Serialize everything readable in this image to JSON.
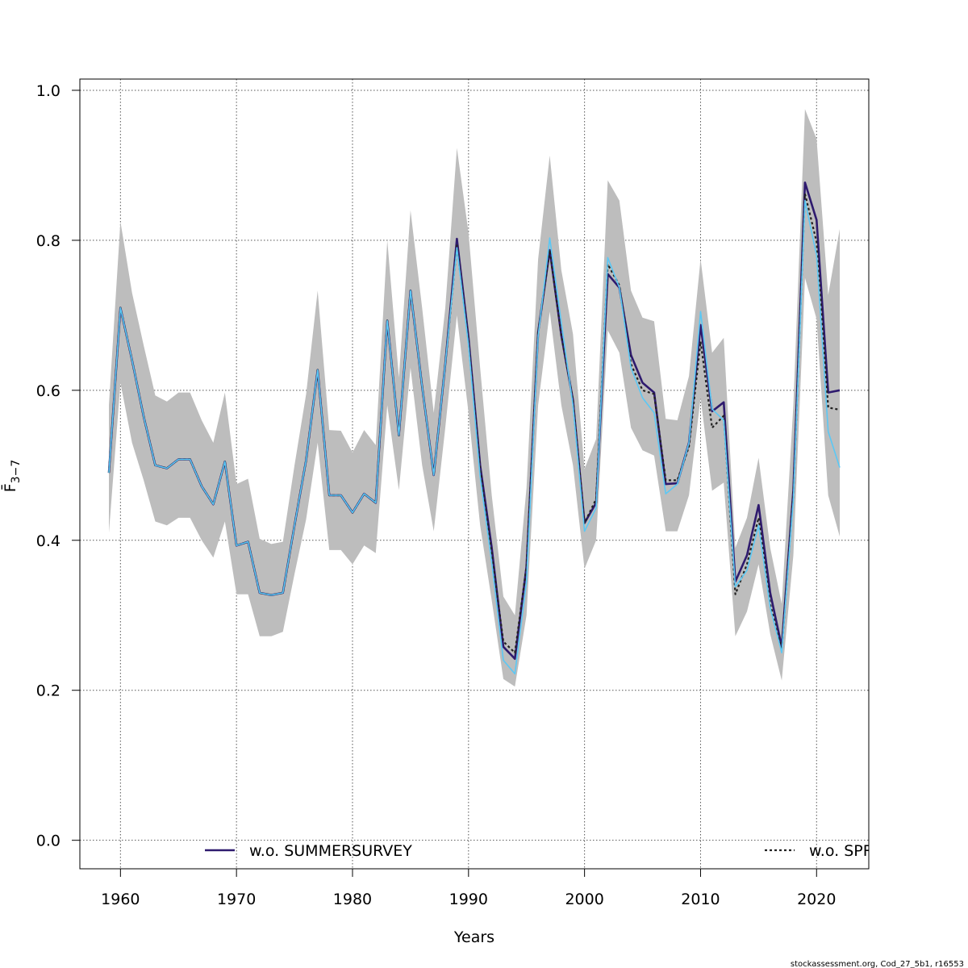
{
  "chart_data": {
    "type": "line",
    "xlabel": "Years",
    "ylabel": "F̄",
    "ylabel_sub": "3−7",
    "xlim": [
      1956.5,
      2024.5
    ],
    "ylim": [
      -0.038,
      1.015
    ],
    "x_ticks": [
      1960,
      1970,
      1980,
      1990,
      2000,
      2010,
      2020
    ],
    "y_ticks": [
      0.0,
      0.2,
      0.4,
      0.6,
      0.8,
      1.0
    ],
    "x_tick_labels": [
      "1960",
      "1970",
      "1980",
      "1990",
      "2000",
      "2010",
      "2020"
    ],
    "y_tick_labels": [
      "0.0",
      "0.2",
      "0.4",
      "0.6",
      "0.8",
      "1.0"
    ],
    "grid": true,
    "legend_position": "bottom",
    "credit": "stockassessment.org, Cod_27_5b1, r16553",
    "x": [
      1959,
      1960,
      1961,
      1962,
      1963,
      1964,
      1965,
      1966,
      1967,
      1968,
      1969,
      1970,
      1971,
      1972,
      1973,
      1974,
      1975,
      1976,
      1977,
      1978,
      1979,
      1980,
      1981,
      1982,
      1983,
      1984,
      1985,
      1986,
      1987,
      1988,
      1989,
      1990,
      1991,
      1992,
      1993,
      1994,
      1995,
      1996,
      1997,
      1998,
      1999,
      2000,
      2001,
      2002,
      2003,
      2004,
      2005,
      2006,
      2007,
      2008,
      2009,
      2010,
      2011,
      2012,
      2013,
      2014,
      2015,
      2016,
      2017,
      2018,
      2019,
      2020,
      2021,
      2022
    ],
    "confidence_band": {
      "lower": [
        0.41,
        0.61,
        0.53,
        0.48,
        0.425,
        0.42,
        0.43,
        0.43,
        0.4,
        0.377,
        0.425,
        0.328,
        0.328,
        0.272,
        0.272,
        0.278,
        0.355,
        0.428,
        0.53,
        0.387,
        0.387,
        0.368,
        0.393,
        0.383,
        0.58,
        0.467,
        0.63,
        0.5,
        0.412,
        0.55,
        0.7,
        0.57,
        0.42,
        0.32,
        0.215,
        0.205,
        0.3,
        0.58,
        0.705,
        0.58,
        0.5,
        0.362,
        0.4,
        0.68,
        0.65,
        0.55,
        0.52,
        0.513,
        0.412,
        0.412,
        0.46,
        0.59,
        0.466,
        0.477,
        0.272,
        0.305,
        0.368,
        0.275,
        0.213,
        0.38,
        0.75,
        0.695,
        0.46,
        0.405
      ],
      "upper": [
        0.58,
        0.825,
        0.73,
        0.66,
        0.593,
        0.585,
        0.597,
        0.597,
        0.56,
        0.53,
        0.597,
        0.475,
        0.482,
        0.402,
        0.395,
        0.398,
        0.5,
        0.595,
        0.733,
        0.547,
        0.546,
        0.517,
        0.547,
        0.527,
        0.8,
        0.617,
        0.84,
        0.71,
        0.57,
        0.71,
        0.923,
        0.81,
        0.63,
        0.46,
        0.325,
        0.3,
        0.47,
        0.775,
        0.913,
        0.76,
        0.675,
        0.495,
        0.535,
        0.88,
        0.853,
        0.733,
        0.697,
        0.692,
        0.562,
        0.56,
        0.619,
        0.775,
        0.65,
        0.67,
        0.39,
        0.43,
        0.51,
        0.39,
        0.315,
        0.58,
        0.975,
        0.935,
        0.727,
        0.815
      ]
    },
    "series": [
      {
        "name": "w.o. SUMMERSURVEY",
        "color": "#2e1a6e",
        "values": [
          0.49,
          0.71,
          0.64,
          0.565,
          0.5,
          0.496,
          0.508,
          0.508,
          0.472,
          0.448,
          0.505,
          0.393,
          0.398,
          0.33,
          0.327,
          0.33,
          0.42,
          0.507,
          0.627,
          0.46,
          0.46,
          0.437,
          0.462,
          0.45,
          0.693,
          0.54,
          0.733,
          0.605,
          0.487,
          0.635,
          0.802,
          0.67,
          0.5,
          0.39,
          0.258,
          0.242,
          0.365,
          0.677,
          0.787,
          0.673,
          0.587,
          0.423,
          0.45,
          0.755,
          0.737,
          0.647,
          0.61,
          0.597,
          0.475,
          0.476,
          0.53,
          0.687,
          0.572,
          0.584,
          0.345,
          0.38,
          0.447,
          0.33,
          0.258,
          0.467,
          0.877,
          0.827,
          0.597,
          0.6
        ]
      },
      {
        "name": "w.o. SPR",
        "color": "#222222",
        "values": [
          0.49,
          0.71,
          0.64,
          0.565,
          0.5,
          0.496,
          0.508,
          0.508,
          0.472,
          0.448,
          0.505,
          0.393,
          0.398,
          0.33,
          0.327,
          0.33,
          0.42,
          0.507,
          0.627,
          0.46,
          0.46,
          0.437,
          0.462,
          0.45,
          0.693,
          0.54,
          0.733,
          0.605,
          0.487,
          0.635,
          0.793,
          0.665,
          0.495,
          0.382,
          0.265,
          0.25,
          0.365,
          0.677,
          0.787,
          0.673,
          0.587,
          0.423,
          0.455,
          0.768,
          0.74,
          0.635,
          0.6,
          0.595,
          0.48,
          0.48,
          0.525,
          0.665,
          0.55,
          0.566,
          0.328,
          0.368,
          0.43,
          0.315,
          0.254,
          0.462,
          0.862,
          0.798,
          0.577,
          0.574
        ]
      },
      {
        "name": "",
        "color": "#5bc8f5",
        "values": [
          0.49,
          0.71,
          0.64,
          0.565,
          0.5,
          0.496,
          0.508,
          0.508,
          0.472,
          0.448,
          0.505,
          0.393,
          0.398,
          0.33,
          0.327,
          0.33,
          0.42,
          0.507,
          0.627,
          0.46,
          0.46,
          0.437,
          0.462,
          0.45,
          0.693,
          0.54,
          0.733,
          0.605,
          0.487,
          0.635,
          0.79,
          0.66,
          0.485,
          0.37,
          0.24,
          0.222,
          0.345,
          0.672,
          0.803,
          0.69,
          0.58,
          0.412,
          0.443,
          0.777,
          0.737,
          0.63,
          0.59,
          0.57,
          0.462,
          0.475,
          0.53,
          0.705,
          0.575,
          0.56,
          0.338,
          0.36,
          0.42,
          0.31,
          0.25,
          0.455,
          0.853,
          0.78,
          0.545,
          0.497
        ]
      }
    ]
  }
}
